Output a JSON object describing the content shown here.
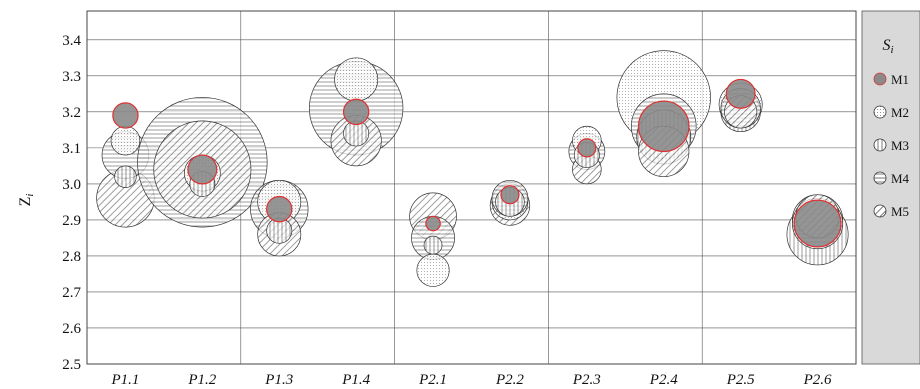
{
  "chart_data": {
    "type": "scatter",
    "xlabel": "",
    "ylabel": "Zi",
    "ylabel_main": "Z",
    "ylabel_sub": "i",
    "ylim": [
      2.5,
      3.48
    ],
    "yticks": [
      "2.5",
      "2.6",
      "2.7",
      "2.8",
      "2.9",
      "3.0",
      "3.1",
      "3.2",
      "3.3",
      "3.4"
    ],
    "categories": [
      "P1.1",
      "P1.2",
      "P1.3",
      "P1.4",
      "P2.1",
      "P2.2",
      "P2.3",
      "P2.4",
      "P2.5",
      "P2.6"
    ],
    "grid": true,
    "legend_position": "right",
    "legend_title": "Si",
    "legend_title_main": "S",
    "legend_title_sub": "i",
    "series": [
      {
        "name": "M1",
        "pattern": "solid-gray",
        "values": [
          3.19,
          3.04,
          2.93,
          3.2,
          2.89,
          2.97,
          3.1,
          3.16,
          3.25,
          2.89
        ],
        "radii": [
          0.035,
          0.04,
          0.035,
          0.035,
          0.02,
          0.025,
          0.025,
          0.07,
          0.04,
          0.065
        ]
      },
      {
        "name": "M2",
        "pattern": "dots",
        "values": [
          3.12,
          3.03,
          2.95,
          3.29,
          2.76,
          2.95,
          3.12,
          3.24,
          3.22,
          2.9
        ],
        "radii": [
          0.04,
          0.05,
          0.06,
          0.06,
          0.045,
          0.05,
          0.04,
          0.13,
          0.06,
          0.07
        ]
      },
      {
        "name": "M3",
        "pattern": "vertical-lines",
        "values": [
          3.02,
          3.0,
          2.87,
          3.14,
          2.83,
          2.95,
          3.08,
          3.13,
          3.2,
          2.86
        ],
        "radii": [
          0.03,
          0.035,
          0.035,
          0.035,
          0.025,
          0.04,
          0.035,
          0.075,
          0.055,
          0.085
        ]
      },
      {
        "name": "M4",
        "pattern": "horizontal-lines",
        "values": [
          3.08,
          3.06,
          2.93,
          3.21,
          2.85,
          2.96,
          3.09,
          3.16,
          3.21,
          2.89
        ],
        "radii": [
          0.065,
          0.18,
          0.08,
          0.13,
          0.06,
          0.05,
          0.05,
          0.09,
          0.055,
          0.07
        ]
      },
      {
        "name": "M5",
        "pattern": "diagonal-lines",
        "values": [
          2.96,
          3.04,
          2.86,
          3.12,
          2.91,
          2.94,
          3.04,
          3.09,
          3.2,
          2.91
        ],
        "radii": [
          0.08,
          0.135,
          0.06,
          0.07,
          0.065,
          0.055,
          0.04,
          0.07,
          0.045,
          0.06
        ]
      }
    ],
    "highlight_color": "#e03030"
  }
}
